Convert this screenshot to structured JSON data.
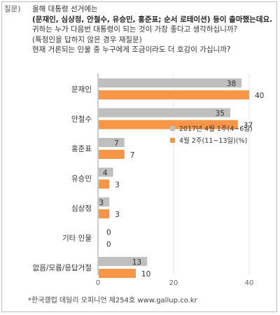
{
  "question": {
    "label": "질문)",
    "lines": [
      "올해 대통령 선거에는",
      "(문재인, 심상정, 안철수, 유승민, 홍준표; 순서 로테이션) 등이 출마했는데요.",
      "귀하는 누가 다음번 대통령이 되는 것이 가장 좋다고 생각하십니까?",
      "(특정인을 답하지 않은 경우 재질문)",
      "현재 거론되는 인물 중 누구에게 조금이라도 더 호감이 가십니까?"
    ]
  },
  "chart_data": {
    "type": "bar",
    "orientation": "horizontal",
    "categories": [
      "문재인",
      "안철수",
      "홍준표",
      "유승민",
      "심상정",
      "기타 인물",
      "없음/모름/응답거절"
    ],
    "series": [
      {
        "name": "2017년 4월 1주(4~6일)",
        "values": [
          38,
          35,
          7,
          4,
          3,
          0,
          13
        ],
        "color": "#bfbfbf"
      },
      {
        "name": "4월 2주(11~13일)(%)",
        "values": [
          40,
          37,
          7,
          3,
          3,
          0,
          10
        ],
        "color": "#f79646"
      }
    ],
    "xlim": [
      0,
      40
    ],
    "xticks": [
      "0",
      "20",
      "40"
    ],
    "legend_position": "right",
    "grid": true
  },
  "footer": "*한국갤럽 데일리 오피니언 제254호 www.gallup.co.kr"
}
